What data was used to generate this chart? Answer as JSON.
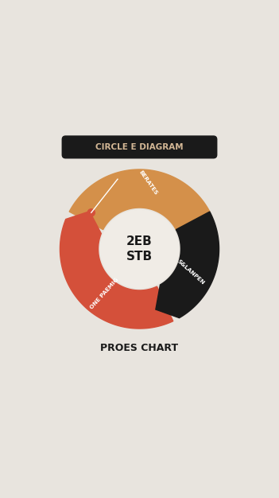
{
  "background_color": "#e8e4de",
  "title_text": "CIRCLE E DIAGRAM",
  "title_bg": "#1a1a1a",
  "title_color": "#d4b896",
  "subtitle_text": "PROES CHART",
  "subtitle_color": "#1a1a1a",
  "center_line1": "2EB",
  "center_line2": "STB",
  "center_color": "#f0ece6",
  "center_text_color": "#1a1a1a",
  "dot_color": "#d4503a",
  "seg_orange_color": "#d4904a",
  "seg_red_color": "#d4503a",
  "seg_black_color": "#1a1a1a",
  "label_orange": "BERATES",
  "label_red": "ONE PAEMIG",
  "label_black": "S&LANPEN"
}
